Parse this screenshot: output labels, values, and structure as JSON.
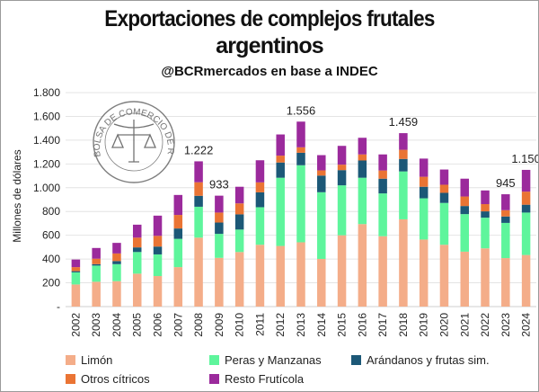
{
  "chart_data": {
    "type": "bar",
    "stacked": true,
    "title": "Exportaciones de complejos frutales argentinos",
    "title_lines": [
      "Exportaciones de complejos frutales",
      "argentinos"
    ],
    "subtitle": "@BCRmercados en base a INDEC",
    "ylabel": "Millones de dólares",
    "xlabel": "",
    "ylim": [
      0,
      1800
    ],
    "yticks": [
      "-",
      "200",
      "400",
      "600",
      "800",
      "1.000",
      "1.200",
      "1.400",
      "1.600",
      "1.800"
    ],
    "grid": true,
    "legend_position": "bottom",
    "categories": [
      "2002",
      "2003",
      "2004",
      "2005",
      "2006",
      "2007",
      "2008",
      "2009",
      "2010",
      "2011",
      "2012",
      "2013",
      "2014",
      "2015",
      "2016",
      "2017",
      "2018",
      "2019",
      "2020",
      "2021",
      "2022",
      "2023",
      "2024"
    ],
    "series": [
      {
        "name": "Limón",
        "color": "#F4AD89",
        "values": [
          186,
          209,
          214,
          277,
          257,
          332,
          580,
          410,
          459,
          520,
          510,
          541,
          401,
          600,
          694,
          592,
          734,
          564,
          520,
          462,
          490,
          408,
          434
        ]
      },
      {
        "name": "Peras y Manzanas",
        "color": "#5EF59C",
        "values": [
          102,
          136,
          143,
          182,
          182,
          238,
          260,
          202,
          189,
          316,
          574,
          648,
          561,
          420,
          390,
          360,
          403,
          347,
          352,
          316,
          258,
          296,
          357
        ]
      },
      {
        "name": "Arándanos y frutas sim.",
        "color": "#1C5877",
        "values": [
          10,
          12,
          26,
          39,
          66,
          87,
          92,
          95,
          128,
          125,
          128,
          105,
          140,
          128,
          145,
          124,
          105,
          97,
          85,
          68,
          53,
          54,
          66
        ]
      },
      {
        "name": "Otros cítricos",
        "color": "#EA7434",
        "values": [
          34,
          46,
          64,
          82,
          90,
          114,
          114,
          84,
          92,
          84,
          58,
          46,
          44,
          46,
          51,
          69,
          77,
          84,
          68,
          80,
          61,
          53,
          110
        ]
      },
      {
        "name": "Resto Frutícola",
        "color": "#9B2A9C",
        "values": [
          64,
          90,
          89,
          109,
          170,
          168,
          176,
          142,
          140,
          186,
          178,
          216,
          128,
          158,
          140,
          135,
          140,
          153,
          128,
          150,
          115,
          134,
          183
        ]
      }
    ],
    "annotations": [
      {
        "category": "2008",
        "text": "1.222"
      },
      {
        "category": "2009",
        "text": "933"
      },
      {
        "category": "2013",
        "text": "1.556"
      },
      {
        "category": "2018",
        "text": "1.459"
      },
      {
        "category": "2023",
        "text": "945"
      },
      {
        "category": "2024",
        "text": "1.150"
      }
    ],
    "watermark": "BOLSA DE COMERCIO DE ROSARIO"
  }
}
